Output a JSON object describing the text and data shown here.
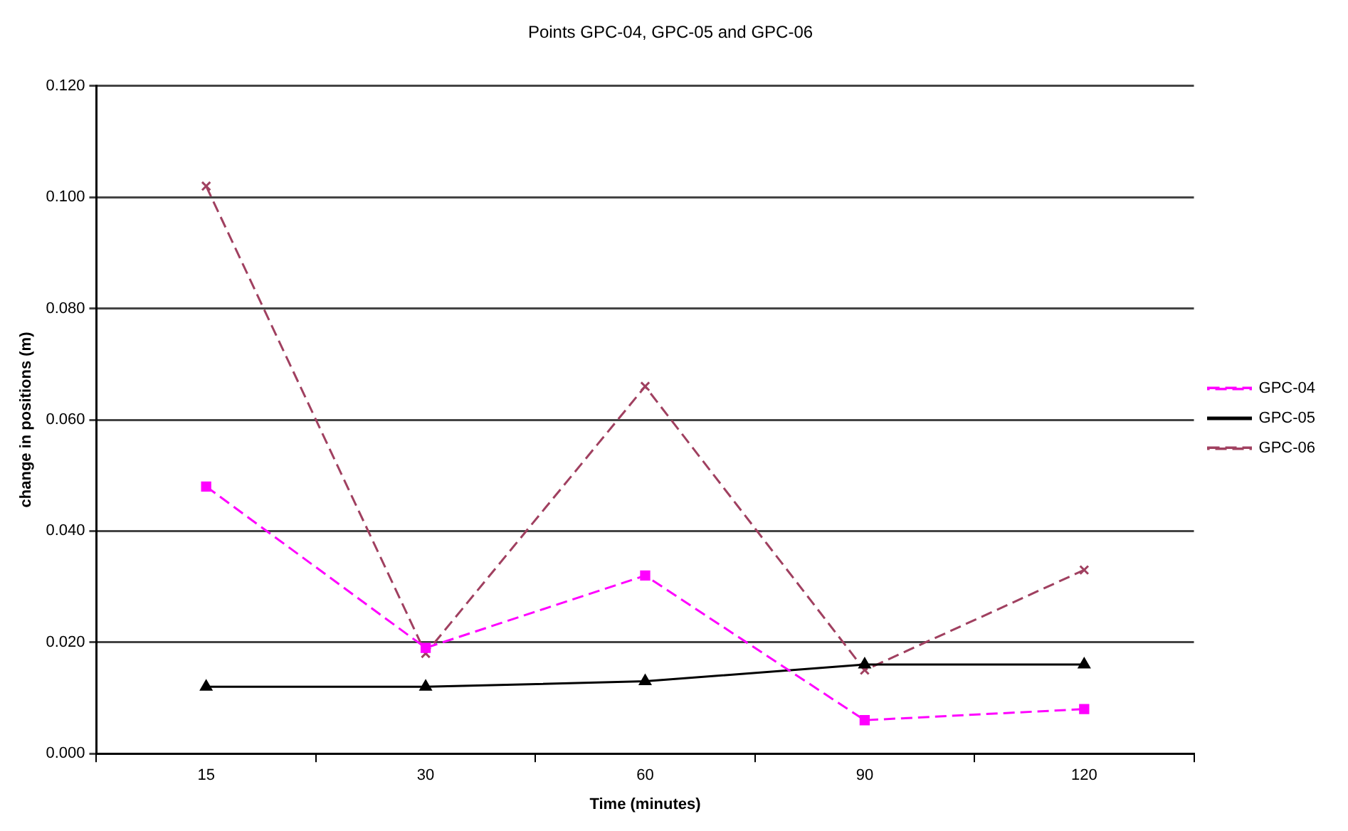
{
  "chart_data": {
    "type": "line",
    "title": "Points GPC-04, GPC-05 and GPC-06",
    "xlabel": "Time (minutes)",
    "ylabel": "change in positions (m)",
    "categories": [
      "15",
      "30",
      "60",
      "90",
      "120"
    ],
    "series": [
      {
        "name": "GPC-04",
        "color": "#ff00ff",
        "marker": "square",
        "line_style": "dashed",
        "values": [
          0.048,
          0.019,
          0.032,
          0.006,
          0.008
        ]
      },
      {
        "name": "GPC-05",
        "color": "#000000",
        "marker": "triangle",
        "line_style": "solid",
        "values": [
          0.012,
          0.012,
          0.013,
          0.016,
          0.016
        ]
      },
      {
        "name": "GPC-06",
        "color": "#a04060",
        "marker": "cross",
        "line_style": "dashed",
        "values": [
          0.102,
          0.018,
          0.066,
          0.015,
          0.033
        ]
      }
    ],
    "ylim": [
      0,
      0.12
    ],
    "yticks": [
      {
        "value": 0,
        "label": "0.000"
      },
      {
        "value": 0.02,
        "label": "0.020"
      },
      {
        "value": 0.04,
        "label": "0.040"
      },
      {
        "value": 0.06,
        "label": "0.060"
      },
      {
        "value": 0.08,
        "label": "0.080"
      },
      {
        "value": 0.1,
        "label": "0.100"
      },
      {
        "value": 0.12,
        "label": "0.120"
      }
    ],
    "grid": "y",
    "legend": "right"
  }
}
